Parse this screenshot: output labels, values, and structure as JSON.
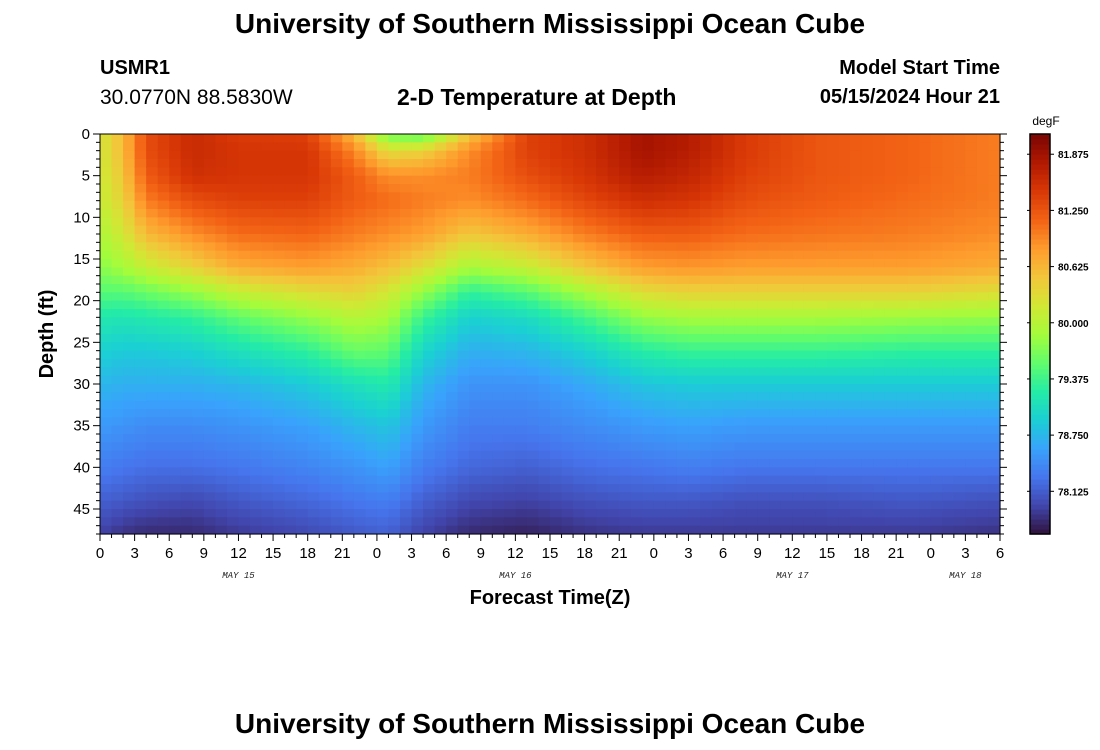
{
  "header": {
    "title": "University of Southern Mississippi Ocean Cube",
    "station_id": "USMR1",
    "coords": "30.0770N  88.5830W",
    "subtitle": "2-D Temperature at Depth",
    "model_label": "Model Start Time",
    "model_time": "05/15/2024 Hour 21"
  },
  "footer": {
    "title": "University of Southern Mississippi Ocean Cube"
  },
  "colors": {
    "colormap": [
      "#30123b",
      "#4145ab",
      "#4675ed",
      "#39a2fc",
      "#1bcfd4",
      "#24eca6",
      "#61fc6c",
      "#a4fc3b",
      "#d1e834",
      "#f3c63a",
      "#fe9b2d",
      "#f36315",
      "#d93806",
      "#b11901",
      "#7a0403"
    ]
  },
  "chart_data": {
    "type": "heatmap",
    "title": "2-D Temperature at Depth",
    "xlabel": "Forecast Time(Z)",
    "ylabel": "Depth (ft)",
    "x_range_hours": [
      0,
      78
    ],
    "x_tick_hours": [
      0,
      3,
      6,
      9,
      12,
      15,
      18,
      21,
      24,
      27,
      30,
      33,
      36,
      39,
      42,
      45,
      48,
      51,
      54,
      57,
      60,
      63,
      66,
      69,
      72,
      75,
      78
    ],
    "x_tick_labels": [
      "0",
      "3",
      "6",
      "9",
      "12",
      "15",
      "18",
      "21",
      "0",
      "3",
      "6",
      "9",
      "12",
      "15",
      "18",
      "21",
      "0",
      "3",
      "6",
      "9",
      "12",
      "15",
      "18",
      "21",
      "0",
      "3",
      "6"
    ],
    "date_labels": [
      {
        "hour": 12,
        "label": "MAY 15"
      },
      {
        "hour": 36,
        "label": "MAY 16"
      },
      {
        "hour": 60,
        "label": "MAY 17"
      },
      {
        "hour": 75,
        "label": "MAY 18"
      }
    ],
    "y_range": [
      0,
      48
    ],
    "y_ticks": [
      0,
      5,
      10,
      15,
      20,
      25,
      30,
      35,
      40,
      45
    ],
    "y_tick_labels": [
      "0",
      "5",
      "10",
      "15",
      "20",
      "25",
      "30",
      "35",
      "40",
      "45"
    ],
    "colorbar": {
      "unit": "degF",
      "min": 77.65,
      "max": 82.1,
      "tick_values": [
        78.125,
        78.75,
        79.375,
        80.0,
        80.625,
        81.25,
        81.875
      ],
      "tick_labels": [
        "78.125",
        "78.750",
        "79.375",
        "80.000",
        "80.625",
        "81.250",
        "81.875"
      ]
    },
    "profile_depths_ft": [
      0,
      2,
      5,
      8,
      12,
      16,
      19,
      22,
      26,
      30,
      35,
      40,
      44,
      48
    ],
    "profiles": [
      {
        "hour": 0,
        "temps": [
          80.2,
          80.2,
          80.15,
          80.1,
          79.95,
          79.75,
          79.5,
          79.2,
          78.95,
          78.75,
          78.55,
          78.35,
          78.15,
          77.95
        ]
      },
      {
        "hour": 2,
        "temps": [
          80.6,
          80.6,
          80.5,
          80.4,
          80.2,
          79.9,
          79.5,
          79.15,
          78.9,
          78.7,
          78.5,
          78.3,
          78.1,
          77.85
        ]
      },
      {
        "hour": 4,
        "temps": [
          81.3,
          81.3,
          81.2,
          81.0,
          80.6,
          80.1,
          79.6,
          79.2,
          78.9,
          78.7,
          78.45,
          78.25,
          78.05,
          77.8
        ]
      },
      {
        "hour": 8,
        "temps": [
          81.6,
          81.6,
          81.55,
          81.3,
          80.9,
          80.4,
          79.8,
          79.3,
          78.95,
          78.7,
          78.45,
          78.25,
          78.0,
          77.8
        ]
      },
      {
        "hour": 12,
        "temps": [
          81.45,
          81.5,
          81.5,
          81.4,
          81.1,
          80.7,
          80.1,
          79.55,
          79.1,
          78.75,
          78.5,
          78.3,
          78.1,
          77.9
        ]
      },
      {
        "hour": 18,
        "temps": [
          81.4,
          81.5,
          81.5,
          81.4,
          81.15,
          80.8,
          80.3,
          79.8,
          79.3,
          78.9,
          78.6,
          78.4,
          78.2,
          78.0
        ]
      },
      {
        "hour": 22,
        "temps": [
          80.6,
          80.95,
          81.2,
          81.2,
          81.0,
          80.7,
          80.4,
          80.0,
          79.6,
          79.1,
          78.75,
          78.5,
          78.3,
          78.1
        ]
      },
      {
        "hour": 25,
        "temps": [
          79.6,
          80.3,
          80.9,
          81.1,
          80.9,
          80.55,
          80.2,
          79.9,
          79.55,
          79.2,
          78.85,
          78.6,
          78.35,
          78.15
        ]
      },
      {
        "hour": 28,
        "temps": [
          79.5,
          80.4,
          80.9,
          81.0,
          80.8,
          80.3,
          79.8,
          79.35,
          79.0,
          78.75,
          78.55,
          78.35,
          78.15,
          77.95
        ]
      },
      {
        "hour": 32,
        "temps": [
          80.5,
          80.9,
          81.0,
          80.9,
          80.5,
          79.9,
          79.3,
          78.95,
          78.7,
          78.5,
          78.35,
          78.2,
          78.0,
          77.8
        ]
      },
      {
        "hour": 37,
        "temps": [
          81.4,
          81.4,
          81.3,
          81.1,
          80.7,
          80.1,
          79.5,
          79.05,
          78.75,
          78.5,
          78.35,
          78.15,
          77.95,
          77.75
        ]
      },
      {
        "hour": 42,
        "temps": [
          81.55,
          81.55,
          81.5,
          81.35,
          81.0,
          80.5,
          79.9,
          79.4,
          78.95,
          78.65,
          78.45,
          78.25,
          78.05,
          77.85
        ]
      },
      {
        "hour": 47,
        "temps": [
          81.85,
          81.85,
          81.75,
          81.55,
          81.2,
          80.8,
          80.3,
          79.8,
          79.25,
          78.85,
          78.55,
          78.3,
          78.1,
          77.9
        ]
      },
      {
        "hour": 51,
        "temps": [
          81.75,
          81.75,
          81.65,
          81.5,
          81.2,
          80.85,
          80.4,
          79.9,
          79.35,
          78.9,
          78.6,
          78.35,
          78.1,
          77.9
        ]
      },
      {
        "hour": 56,
        "temps": [
          81.45,
          81.45,
          81.4,
          81.3,
          81.1,
          80.8,
          80.4,
          79.9,
          79.35,
          78.9,
          78.55,
          78.3,
          78.05,
          77.9
        ]
      },
      {
        "hour": 62,
        "temps": [
          81.25,
          81.25,
          81.25,
          81.2,
          81.05,
          80.8,
          80.4,
          79.9,
          79.35,
          78.9,
          78.55,
          78.3,
          78.05,
          77.9
        ]
      },
      {
        "hour": 70,
        "temps": [
          81.15,
          81.15,
          81.15,
          81.1,
          81.0,
          80.8,
          80.4,
          79.85,
          79.3,
          78.9,
          78.55,
          78.3,
          78.1,
          77.9
        ]
      },
      {
        "hour": 78,
        "temps": [
          81.0,
          81.0,
          81.0,
          81.0,
          80.9,
          80.7,
          80.3,
          79.8,
          79.3,
          78.9,
          78.55,
          78.3,
          78.05,
          77.85
        ]
      }
    ]
  }
}
